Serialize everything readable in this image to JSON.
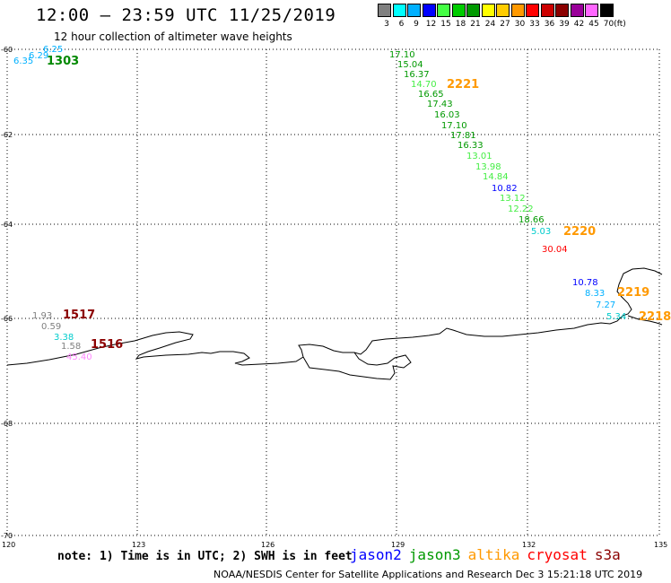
{
  "header": {
    "title": "12:00 – 23:59 UTC 11/25/2019",
    "subtitle": "12 hour collection of altimeter wave heights"
  },
  "color_scale": {
    "unit": "(ft)",
    "bins": [
      {
        "label": "3",
        "color": "#808080"
      },
      {
        "label": "6",
        "color": "#00ffff"
      },
      {
        "label": "9",
        "color": "#00b0ff"
      },
      {
        "label": "12",
        "color": "#0000ff"
      },
      {
        "label": "15",
        "color": "#44ff44"
      },
      {
        "label": "18",
        "color": "#00cc00"
      },
      {
        "label": "21",
        "color": "#009900"
      },
      {
        "label": "24",
        "color": "#ffff00"
      },
      {
        "label": "27",
        "color": "#ffcc00"
      },
      {
        "label": "30",
        "color": "#ff9900"
      },
      {
        "label": "33",
        "color": "#ff0000"
      },
      {
        "label": "36",
        "color": "#cc0000"
      },
      {
        "label": "39",
        "color": "#8b0000"
      },
      {
        "label": "42",
        "color": "#990099"
      },
      {
        "label": "45",
        "color": "#ff66ff"
      },
      {
        "label": "70",
        "color": "#000000"
      }
    ]
  },
  "map": {
    "lat_labels": [
      "-60",
      "-62",
      "-64",
      "-66",
      "-68",
      "-70"
    ],
    "lon_labels": [
      "120",
      "123",
      "126",
      "129",
      "132",
      "135"
    ],
    "observations": [
      {
        "text": "6.25",
        "color": "#00b0ff"
      },
      {
        "text": "6.29",
        "color": "#00b0ff"
      },
      {
        "text": "6.35",
        "color": "#00b0ff"
      },
      {
        "text": "1303",
        "color": "#008800",
        "big": true
      },
      {
        "text": "17.10",
        "color": "#009900"
      },
      {
        "text": "15.04",
        "color": "#009900"
      },
      {
        "text": "16.37",
        "color": "#009900"
      },
      {
        "text": "14.70",
        "color": "#44ee44"
      },
      {
        "text": "2221",
        "color": "#ff9900",
        "big": true
      },
      {
        "text": "16.65",
        "color": "#009900"
      },
      {
        "text": "17.43",
        "color": "#009900"
      },
      {
        "text": "16.03",
        "color": "#009900"
      },
      {
        "text": "17.10",
        "color": "#009900"
      },
      {
        "text": "17.81",
        "color": "#009900"
      },
      {
        "text": "16.33",
        "color": "#009900"
      },
      {
        "text": "13.01",
        "color": "#44ee44"
      },
      {
        "text": "13.98",
        "color": "#44ee44"
      },
      {
        "text": "14.84",
        "color": "#44ee44"
      },
      {
        "text": "10.82",
        "color": "#0000ff"
      },
      {
        "text": "13.12",
        "color": "#44ee44"
      },
      {
        "text": "12.22",
        "color": "#44ee44"
      },
      {
        "text": "18.66",
        "color": "#009900"
      },
      {
        "text": "5.03",
        "color": "#00cccc"
      },
      {
        "text": "2220",
        "color": "#ff9900",
        "big": true
      },
      {
        "text": "30.04",
        "color": "#ff0000"
      },
      {
        "text": "10.78",
        "color": "#0000ff"
      },
      {
        "text": "8.33",
        "color": "#00b0ff"
      },
      {
        "text": "2219",
        "color": "#ff9900",
        "big": true
      },
      {
        "text": "7.27",
        "color": "#00b0ff"
      },
      {
        "text": "5.34",
        "color": "#00cccc"
      },
      {
        "text": "2218",
        "color": "#ff9900",
        "big": true
      },
      {
        "text": "1.93",
        "color": "#808080"
      },
      {
        "text": "1517",
        "color": "#8b0000",
        "big": true
      },
      {
        "text": "0.59",
        "color": "#808080"
      },
      {
        "text": "3.38",
        "color": "#00cccc"
      },
      {
        "text": "1.58",
        "color": "#808080"
      },
      {
        "text": "1516",
        "color": "#8b0000",
        "big": true
      },
      {
        "text": "45.40",
        "color": "#ff88ff"
      }
    ]
  },
  "note": "note: 1) Time is in UTC; 2) SWH is in feet",
  "satellites": [
    {
      "name": "jason2",
      "color": "#0000ff"
    },
    {
      "name": "jason3",
      "color": "#009900"
    },
    {
      "name": "altika",
      "color": "#ff9900"
    },
    {
      "name": "cryosat",
      "color": "#ff0000"
    },
    {
      "name": "s3a",
      "color": "#8b0000"
    }
  ],
  "footer": "NOAA/NESDIS Center for Satellite Applications and Research    Dec  3 15:21:18 UTC 2019"
}
